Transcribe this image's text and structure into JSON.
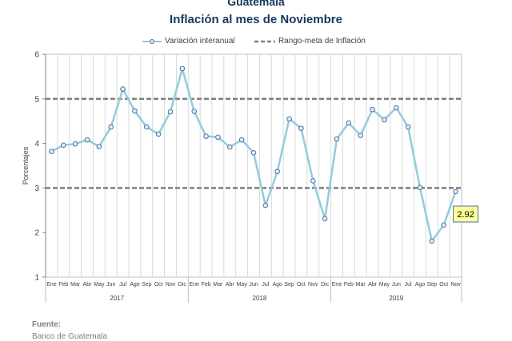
{
  "title_line1": "Guatemala",
  "title_line2": "Inflación al mes de Noviembre",
  "source_label": "Fuente:",
  "source_value": "Banco de Guatemala",
  "colors": {
    "series": "#92cddc",
    "marker_border": "#4f6fa8",
    "target": "#7f7f7f",
    "callout_bg": "#ffff99"
  },
  "chart_data": {
    "type": "line",
    "ylabel": "Porcentajes",
    "xlabel": "",
    "ylim": [
      1,
      6
    ],
    "yticks": [
      1,
      2,
      3,
      4,
      5,
      6
    ],
    "grid": true,
    "legend_position": "top-center",
    "months": [
      "Ene",
      "Feb",
      "Mar",
      "Abr",
      "May",
      "Jun",
      "Jul",
      "Ago",
      "Sep",
      "Oct",
      "Nov",
      "Dic",
      "Ene",
      "Feb",
      "Mar",
      "Abr",
      "May",
      "Jun",
      "Jul",
      "Ago",
      "Sep",
      "Oct",
      "Nov",
      "Dic",
      "Ene",
      "Feb",
      "Mar",
      "Abr",
      "May",
      "Jun",
      "Jul",
      "Ago",
      "Sep",
      "Oct",
      "Nov"
    ],
    "years": [
      "2017",
      "2018",
      "2019"
    ],
    "series": [
      {
        "name": "Variación interanual",
        "values": [
          3.82,
          3.96,
          3.99,
          4.08,
          3.93,
          4.37,
          5.22,
          4.73,
          4.37,
          4.21,
          4.71,
          5.68,
          4.72,
          4.16,
          4.14,
          3.92,
          4.08,
          3.79,
          2.61,
          3.37,
          4.55,
          4.34,
          3.16,
          2.31,
          4.1,
          4.46,
          4.18,
          4.76,
          4.53,
          4.8,
          4.37,
          3.01,
          1.81,
          2.17,
          2.92
        ]
      }
    ],
    "target_band": {
      "name": "Rango-meta de Inflación",
      "lower": 3,
      "upper": 5
    },
    "annotation": "2.92"
  }
}
